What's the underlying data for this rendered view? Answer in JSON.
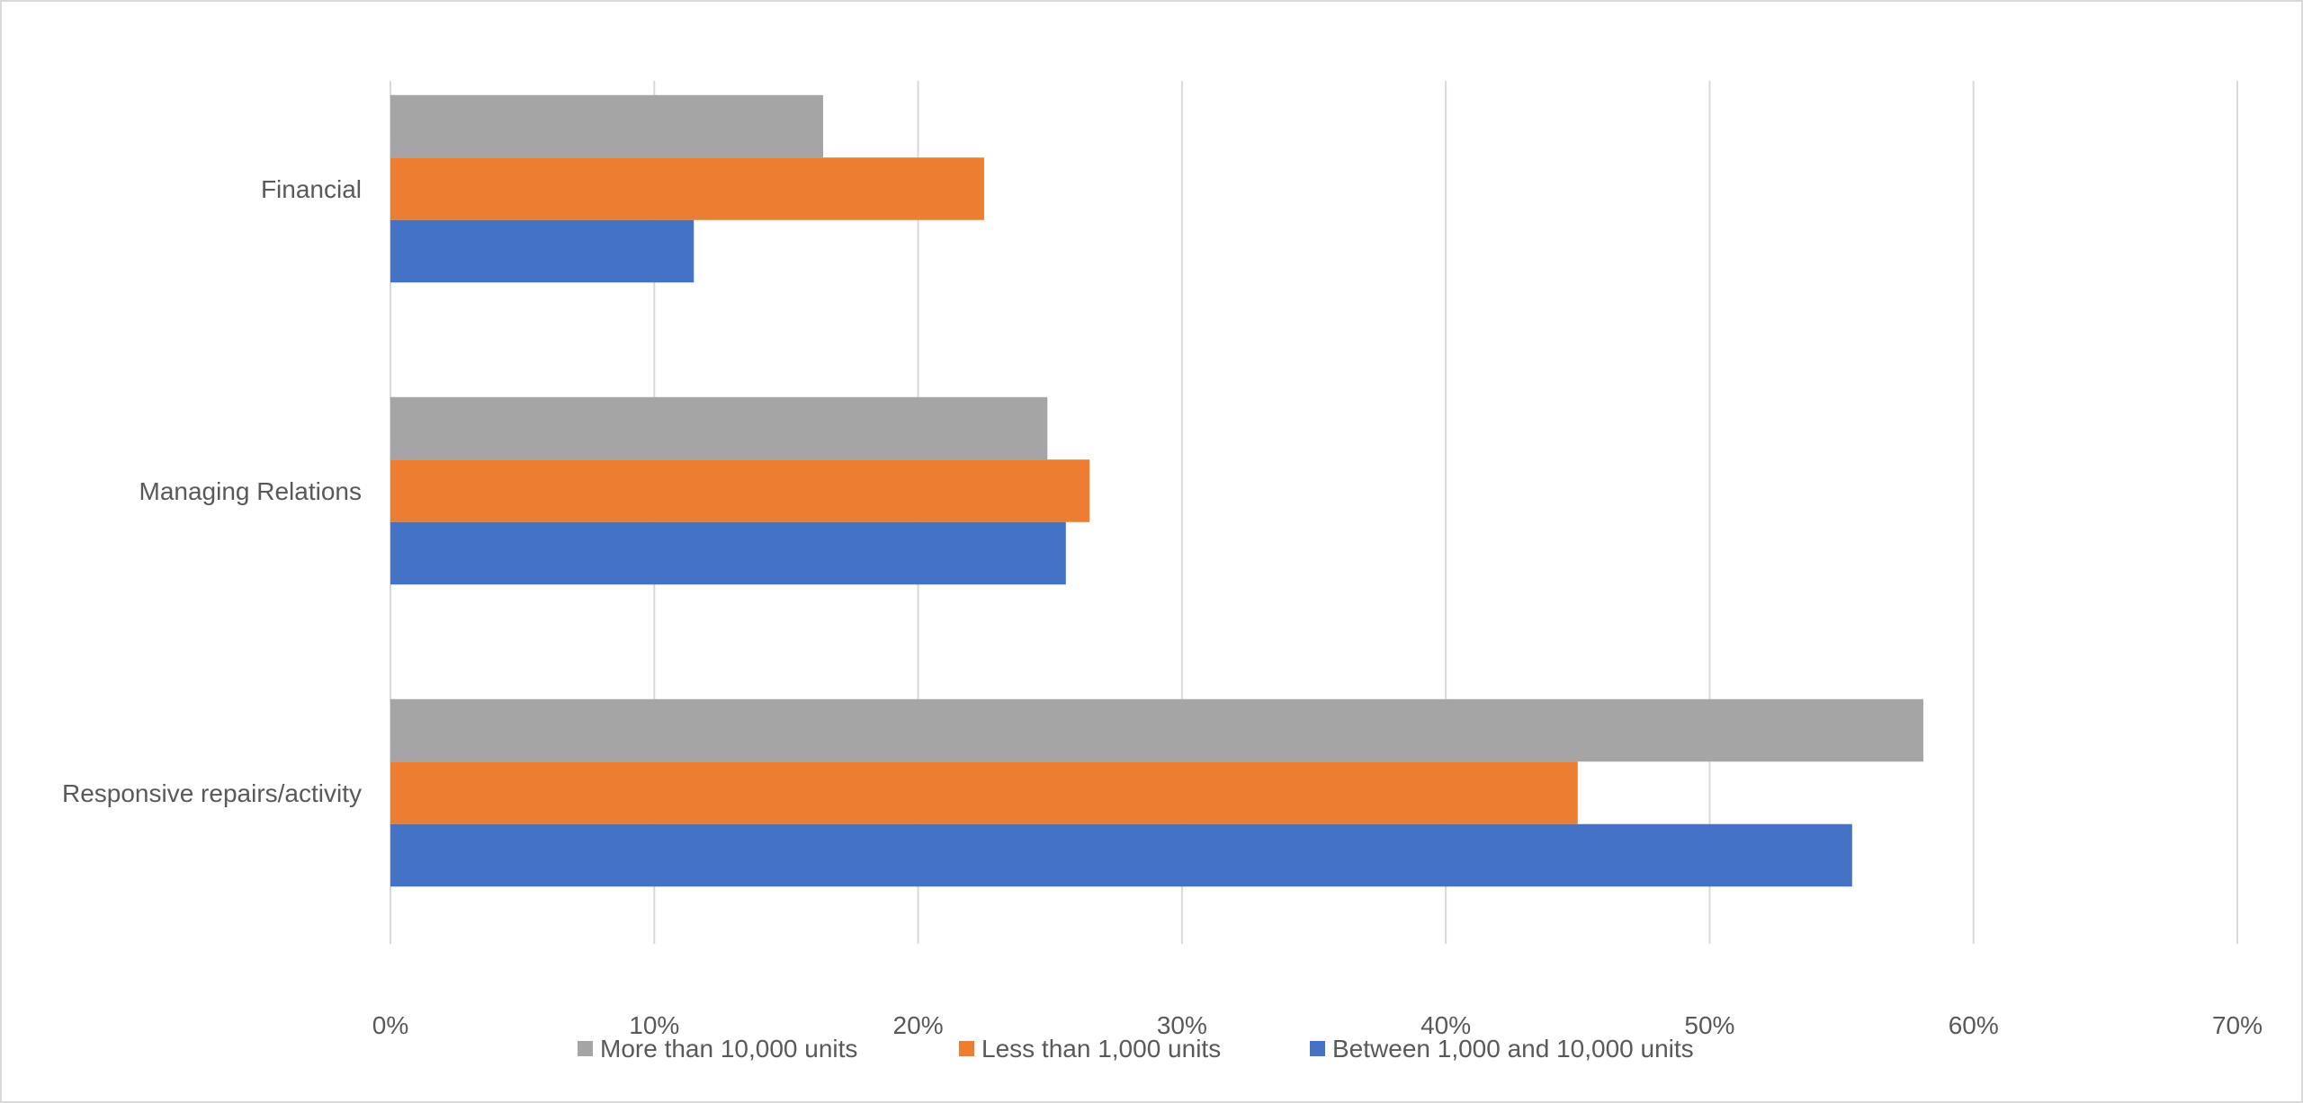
{
  "chart_data": {
    "type": "bar",
    "orientation": "horizontal",
    "title": "",
    "xlabel": "",
    "ylabel": "",
    "categories": [
      "Financial",
      "Managing Relations",
      "Responsive repairs/activity"
    ],
    "series": [
      {
        "name": "More than 10,000 units",
        "color": "#A5A5A5",
        "values": [
          16.4,
          24.9,
          58.1
        ]
      },
      {
        "name": "Less than 1,000 units",
        "color": "#ED7D31",
        "values": [
          22.5,
          26.5,
          45.0
        ]
      },
      {
        "name": "Between 1,000 and 10,000 units",
        "color": "#4472C4",
        "values": [
          11.5,
          25.6,
          55.4
        ]
      }
    ],
    "xlim": [
      0,
      70
    ],
    "xticks": [
      "0%",
      "10%",
      "20%",
      "30%",
      "40%",
      "50%",
      "60%",
      "70%"
    ],
    "grid": true,
    "legend_position": "bottom"
  }
}
